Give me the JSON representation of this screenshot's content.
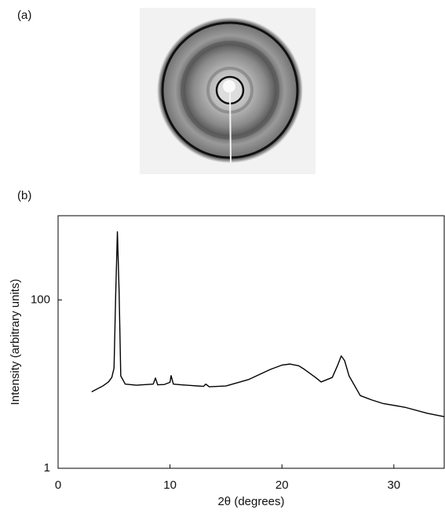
{
  "figure": {
    "panel_a_label": "(a)"
  },
  "chart_data": {
    "type": "line",
    "panel_label": "(b)",
    "xlabel": "2θ (degrees)",
    "ylabel": "Intensity (arbitrary units)",
    "yscale": "log",
    "xlim": [
      0,
      34.5
    ],
    "ylim": [
      1,
      1000
    ],
    "xticks": [
      0,
      10,
      20,
      30
    ],
    "yticks": [
      1,
      100
    ],
    "series": [
      {
        "color": "#000000",
        "x": [
          3,
          4,
          4.5,
          4.8,
          5,
          5.15,
          5.3,
          5.45,
          5.6,
          6,
          7,
          8.5,
          8.7,
          8.9,
          9.5,
          10,
          10.1,
          10.3,
          11,
          12,
          13,
          13.2,
          13.5,
          15,
          17,
          19,
          20,
          20.7,
          21.5,
          22,
          23,
          23.5,
          24.5,
          25,
          25.3,
          25.6,
          26,
          27,
          28,
          29,
          31,
          33,
          34.5
        ],
        "values": [
          8.1,
          9.5,
          10.6,
          12,
          15.5,
          120,
          645,
          130,
          12.5,
          10,
          9.7,
          10,
          11.8,
          9.8,
          9.9,
          10.5,
          12.6,
          10,
          9.8,
          9.6,
          9.4,
          10,
          9.3,
          9.5,
          11.3,
          15,
          16.8,
          17.3,
          16.5,
          15,
          12,
          10.6,
          12,
          17,
          21.6,
          19,
          12.5,
          7.3,
          6.5,
          5.9,
          5.3,
          4.5,
          4.1
        ]
      }
    ]
  }
}
